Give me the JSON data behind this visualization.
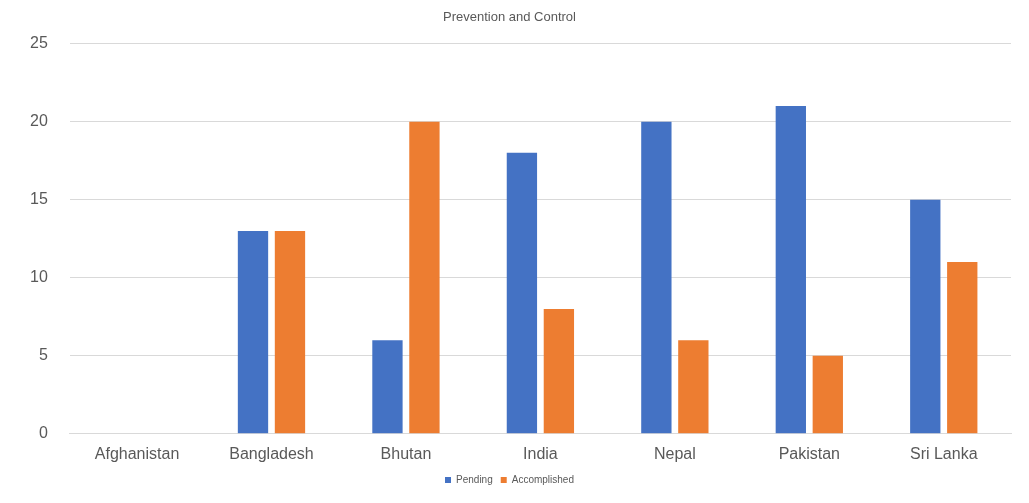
{
  "chart_data": {
    "type": "bar",
    "title": "Prevention and Control",
    "categories": [
      "Afghanistan",
      "Bangladesh",
      "Bhutan",
      "India",
      "Nepal",
      "Pakistan",
      "Sri Lanka"
    ],
    "series": [
      {
        "name": "Pending",
        "color": "#4472c4",
        "values": [
          null,
          13,
          6,
          18,
          20,
          21,
          15
        ]
      },
      {
        "name": "Accomplished",
        "color": "#ed7d31",
        "values": [
          null,
          13,
          20,
          8,
          6,
          5,
          11
        ]
      }
    ],
    "ylim": [
      0,
      25
    ],
    "yticks": [
      0,
      5,
      10,
      15,
      20,
      25
    ],
    "grid": "y",
    "legend": "bottom"
  }
}
